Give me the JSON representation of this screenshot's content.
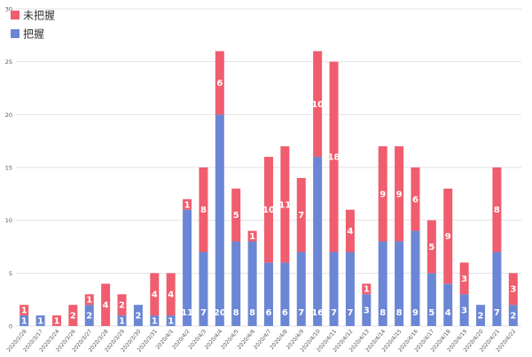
{
  "chart_data": {
    "type": "bar",
    "stacked": true,
    "title": "",
    "xlabel": "",
    "ylabel": "",
    "ylim": [
      0,
      30
    ],
    "yticks": [
      0,
      5,
      10,
      15,
      20,
      25,
      30
    ],
    "grid": true,
    "legend_position": "top-left",
    "categories": [
      "2020/2/28",
      "2020/3/17",
      "2020/3/24",
      "2020/3/26",
      "2020/3/27",
      "2020/3/28",
      "2020/3/29",
      "2020/3/30",
      "2020/3/31",
      "2020/4/1",
      "2020/4/2",
      "2020/4/3",
      "2020/4/4",
      "2020/4/5",
      "2020/4/6",
      "2020/4/7",
      "2020/4/8",
      "2020/4/9",
      "2020/4/10",
      "2020/4/11",
      "2020/4/12",
      "2020/4/13",
      "2020/4/14",
      "2020/4/15",
      "2020/4/16",
      "2020/4/17",
      "2020/4/18",
      "2020/4/19",
      "2020/4/20",
      "2020/4/21",
      "2020/4/22"
    ],
    "series": [
      {
        "name": "把握",
        "color": "#6b86d4",
        "values": [
          1,
          1,
          0,
          0,
          2,
          0,
          1,
          2,
          1,
          1,
          11,
          7,
          20,
          8,
          8,
          6,
          6,
          7,
          16,
          7,
          7,
          3,
          8,
          8,
          9,
          5,
          4,
          3,
          2,
          7,
          2
        ]
      },
      {
        "name": "未把握",
        "color": "#f05d6e",
        "values": [
          1,
          0,
          1,
          2,
          1,
          4,
          2,
          0,
          4,
          4,
          1,
          8,
          6,
          5,
          1,
          10,
          11,
          7,
          10,
          18,
          4,
          1,
          9,
          9,
          6,
          5,
          9,
          3,
          0,
          8,
          3
        ]
      }
    ],
    "data_labels": {
      "把握": [
        "1",
        "1",
        "",
        "",
        "2",
        "",
        "1",
        "2",
        "1",
        "1",
        "11",
        "7",
        "20",
        "8",
        "8",
        "6",
        "6",
        "7",
        "16",
        "7",
        "7",
        "3",
        "8",
        "8",
        "9",
        "5",
        "4",
        "3",
        "2",
        "7",
        "2"
      ],
      "未把握": [
        "1",
        "",
        "1",
        "2",
        "1",
        "4",
        "2",
        "",
        "4",
        "4",
        "1",
        "8",
        "6",
        "5",
        "1",
        "10",
        "11",
        "7",
        "10",
        "18",
        "4",
        "1",
        "9",
        "9",
        "6",
        "5",
        "9",
        "3",
        "",
        "8",
        "3"
      ]
    },
    "legend": [
      {
        "series": "未把握",
        "label": "未把握"
      },
      {
        "series": "把握",
        "label": "把握"
      }
    ]
  }
}
